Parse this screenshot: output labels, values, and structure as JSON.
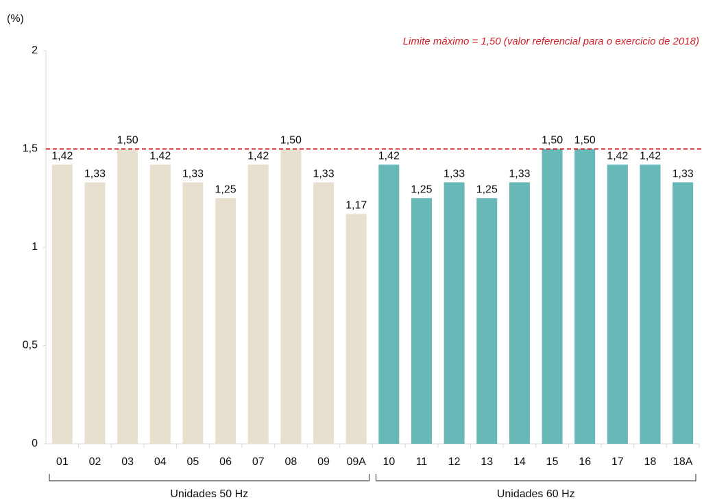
{
  "chart_data": {
    "type": "bar",
    "y_label": "(%)",
    "categories": [
      "01",
      "02",
      "03",
      "04",
      "05",
      "06",
      "07",
      "08",
      "09",
      "09A",
      "10",
      "11",
      "12",
      "13",
      "14",
      "15",
      "16",
      "17",
      "18",
      "18A"
    ],
    "series": [
      {
        "name": "Unidades 50 Hz",
        "color": "#e8e0cf",
        "values": [
          1.42,
          1.33,
          1.5,
          1.42,
          1.33,
          1.25,
          1.42,
          1.5,
          1.33,
          1.17,
          null,
          null,
          null,
          null,
          null,
          null,
          null,
          null,
          null,
          null
        ],
        "value_labels": [
          "1,42",
          "1,33",
          "1,50",
          "1,42",
          "1,33",
          "1,25",
          "1,42",
          "1,50",
          "1,33",
          "1,17",
          null,
          null,
          null,
          null,
          null,
          null,
          null,
          null,
          null,
          null
        ]
      },
      {
        "name": "Unidades 60 Hz",
        "color": "#69b8b8",
        "values": [
          null,
          null,
          null,
          null,
          null,
          null,
          null,
          null,
          null,
          null,
          1.42,
          1.25,
          1.33,
          1.25,
          1.33,
          1.5,
          1.5,
          1.42,
          1.42,
          1.33
        ],
        "value_labels": [
          null,
          null,
          null,
          null,
          null,
          null,
          null,
          null,
          null,
          null,
          "1,42",
          "1,25",
          "1,33",
          "1,25",
          "1,33",
          "1,50",
          "1,50",
          "1,42",
          "1,42",
          "1,33"
        ]
      }
    ],
    "ylim": [
      0,
      2
    ],
    "yticks": [
      0,
      {
        "value": 0.5,
        "label": "0,5"
      },
      1,
      {
        "value": 1.5,
        "label": "1,5"
      },
      2
    ],
    "reference_line": {
      "value": 1.5,
      "label": "Limite máximo = 1,50 (valor referencial para o exercicio de 2018)",
      "color": "#d0202a"
    }
  }
}
